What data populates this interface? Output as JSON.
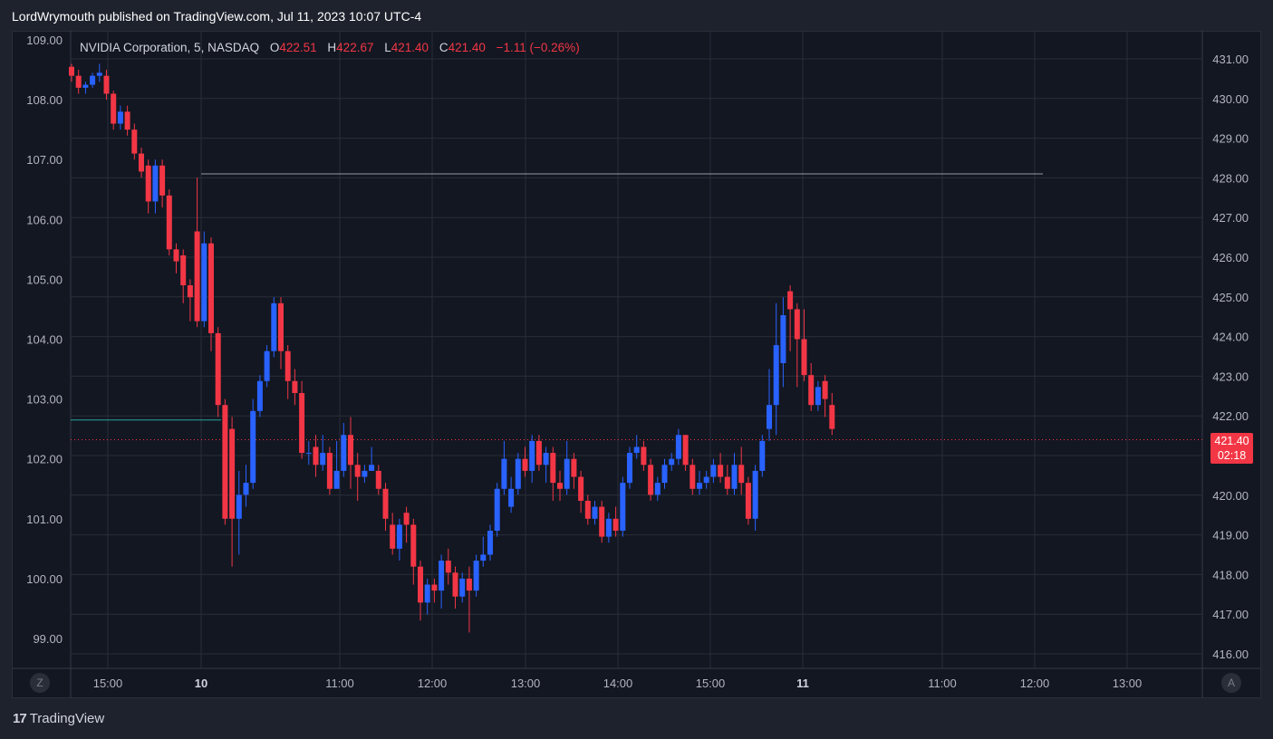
{
  "header": {
    "publisher_line": "LordWrymouth published on TradingView.com, Jul 11, 2023 10:07 UTC-4"
  },
  "legend": {
    "symbol": "NVIDIA Corporation, 5, NASDAQ",
    "o_label": "O",
    "o_value": "422.51",
    "h_label": "H",
    "h_value": "422.67",
    "l_label": "L",
    "l_value": "421.40",
    "c_label": "C",
    "c_value": "421.40",
    "change": "−1.11 (−0.26%)"
  },
  "price_badge": {
    "price": "421.40",
    "countdown": "02:18"
  },
  "buttons": {
    "left": "Z",
    "right": "A"
  },
  "footer": {
    "brand": "TradingView",
    "mark": "17"
  },
  "colors": {
    "up": "#2962ff",
    "down": "#f23645",
    "background": "#131722",
    "grid": "#2a2e39"
  },
  "chart_data": {
    "type": "candlestick",
    "symbol": "NVDA",
    "interval": "5",
    "left_axis": {
      "ticks": [
        "109.00",
        "108.00",
        "107.00",
        "106.00",
        "105.00",
        "104.00",
        "103.00",
        "102.00",
        "101.00",
        "100.00",
        "99.00"
      ],
      "range": [
        98.7,
        109.3
      ]
    },
    "right_axis": {
      "ticks": [
        "431.00",
        "430.00",
        "429.00",
        "428.00",
        "427.00",
        "426.00",
        "425.00",
        "424.00",
        "423.00",
        "422.00",
        "421.00",
        "420.00",
        "419.00",
        "418.00",
        "417.00",
        "416.00"
      ],
      "range": [
        415.7,
        431.6
      ]
    },
    "x_ticks": [
      "15:00",
      "10",
      "11:00",
      "12:00",
      "13:00",
      "14:00",
      "15:00",
      "11",
      "11:00",
      "12:00",
      "13:00"
    ],
    "horizontal_lines": [
      {
        "price": 428.1,
        "axis": "right",
        "color": "#9598a1"
      },
      {
        "price": 102.65,
        "axis": "left",
        "color": "#26a69a"
      },
      {
        "price": 421.4,
        "axis": "right",
        "color": "#f23645",
        "dashed": true
      }
    ],
    "candles": [
      [
        108.55,
        108.4,
        108.6,
        108.3
      ],
      [
        108.4,
        108.2,
        108.5,
        108.1
      ],
      [
        108.2,
        108.25,
        108.3,
        108.1
      ],
      [
        108.25,
        108.4,
        108.45,
        108.2
      ],
      [
        108.4,
        108.45,
        108.6,
        108.3
      ],
      [
        108.4,
        108.1,
        108.5,
        108.0
      ],
      [
        108.1,
        107.6,
        108.15,
        107.5
      ],
      [
        107.6,
        107.8,
        107.9,
        107.5
      ],
      [
        107.8,
        107.5,
        107.9,
        107.4
      ],
      [
        107.5,
        107.1,
        107.6,
        107.0
      ],
      [
        107.1,
        106.8,
        107.2,
        106.7
      ],
      [
        106.9,
        106.3,
        107.0,
        106.1
      ],
      [
        106.3,
        106.9,
        107.0,
        106.1
      ],
      [
        106.9,
        106.4,
        107.0,
        106.2
      ],
      [
        106.4,
        105.5,
        106.5,
        105.4
      ],
      [
        105.5,
        105.3,
        105.6,
        105.1
      ],
      [
        105.4,
        104.9,
        105.5,
        104.6
      ],
      [
        104.9,
        104.7,
        105.0,
        104.3
      ],
      [
        105.8,
        104.3,
        106.7,
        104.2
      ],
      [
        104.3,
        105.6,
        105.8,
        104.2
      ],
      [
        105.6,
        104.1,
        105.7,
        103.8
      ],
      [
        104.1,
        102.9,
        104.2,
        102.7
      ],
      [
        102.9,
        101.0,
        103.0,
        100.9
      ],
      [
        102.5,
        101.0,
        102.7,
        100.2
      ],
      [
        101.0,
        101.4,
        101.8,
        100.4
      ],
      [
        101.4,
        101.6,
        101.9,
        101.2
      ],
      [
        101.6,
        102.8,
        103.0,
        101.5
      ],
      [
        102.8,
        103.3,
        103.4,
        102.7
      ],
      [
        103.3,
        103.8,
        103.9,
        103.2
      ],
      [
        103.8,
        104.6,
        104.7,
        103.7
      ],
      [
        104.6,
        103.8,
        104.7,
        103.5
      ],
      [
        103.8,
        103.3,
        103.9,
        103.0
      ],
      [
        103.3,
        103.1,
        103.5,
        102.9
      ],
      [
        103.1,
        102.1,
        103.3,
        102.0
      ],
      [
        102.1,
        102.1,
        102.3,
        101.9
      ],
      [
        102.2,
        101.9,
        102.4,
        101.7
      ],
      [
        101.9,
        102.1,
        102.4,
        101.8
      ],
      [
        102.1,
        101.5,
        102.2,
        101.4
      ],
      [
        101.5,
        101.8,
        102.3,
        101.6
      ],
      [
        101.8,
        102.4,
        102.6,
        101.7
      ],
      [
        102.4,
        101.9,
        102.7,
        101.5
      ],
      [
        101.9,
        101.7,
        102.1,
        101.3
      ],
      [
        101.7,
        101.8,
        101.9,
        101.6
      ],
      [
        101.8,
        101.9,
        102.2,
        101.8
      ],
      [
        101.8,
        101.5,
        101.9,
        101.4
      ],
      [
        101.5,
        101.0,
        101.6,
        100.8
      ],
      [
        100.9,
        100.5,
        101.1,
        100.4
      ],
      [
        100.5,
        100.9,
        101.0,
        100.3
      ],
      [
        101.1,
        100.9,
        101.2,
        100.6
      ],
      [
        100.9,
        100.2,
        101.0,
        99.9
      ],
      [
        100.2,
        99.6,
        100.3,
        99.3
      ],
      [
        99.6,
        99.9,
        100.0,
        99.4
      ],
      [
        99.9,
        99.8,
        100.0,
        99.6
      ],
      [
        99.8,
        100.3,
        100.4,
        99.5
      ],
      [
        100.3,
        100.1,
        100.5,
        99.9
      ],
      [
        100.1,
        99.7,
        100.2,
        99.5
      ],
      [
        99.7,
        100.0,
        100.1,
        99.6
      ],
      [
        100.0,
        99.8,
        100.2,
        99.1
      ],
      [
        99.8,
        100.3,
        100.4,
        99.7
      ],
      [
        100.3,
        100.4,
        100.7,
        100.2
      ],
      [
        100.4,
        100.8,
        100.9,
        100.3
      ],
      [
        100.8,
        101.5,
        101.6,
        100.7
      ],
      [
        101.5,
        102.0,
        102.3,
        101.4
      ],
      [
        101.2,
        101.5,
        101.7,
        101.1
      ],
      [
        101.5,
        102.0,
        102.1,
        101.4
      ],
      [
        102.0,
        101.8,
        102.2,
        101.7
      ],
      [
        101.8,
        102.3,
        102.4,
        101.6
      ],
      [
        102.3,
        101.9,
        102.4,
        101.8
      ],
      [
        101.9,
        102.1,
        102.2,
        101.6
      ],
      [
        102.1,
        101.6,
        102.2,
        101.3
      ],
      [
        101.6,
        101.5,
        101.8,
        101.3
      ],
      [
        101.5,
        102.0,
        102.3,
        101.4
      ],
      [
        102.0,
        101.7,
        102.1,
        101.5
      ],
      [
        101.7,
        101.3,
        101.8,
        101.1
      ],
      [
        101.3,
        101.0,
        101.4,
        100.9
      ],
      [
        101.0,
        101.2,
        101.3,
        100.9
      ],
      [
        101.2,
        100.7,
        101.3,
        100.6
      ],
      [
        100.7,
        101.0,
        101.1,
        100.6
      ],
      [
        101.0,
        100.8,
        101.2,
        100.7
      ],
      [
        100.8,
        101.6,
        101.7,
        100.7
      ],
      [
        101.6,
        102.1,
        102.2,
        101.5
      ],
      [
        102.1,
        102.2,
        102.4,
        102.0
      ],
      [
        102.2,
        101.9,
        102.3,
        101.8
      ],
      [
        101.9,
        101.4,
        102.0,
        101.3
      ],
      [
        101.4,
        101.6,
        101.7,
        101.3
      ],
      [
        101.6,
        101.9,
        102.0,
        101.5
      ],
      [
        101.9,
        102.0,
        102.1,
        101.8
      ],
      [
        102.0,
        102.4,
        102.5,
        101.9
      ],
      [
        102.4,
        101.9,
        102.4,
        101.8
      ],
      [
        101.9,
        101.5,
        102.0,
        101.4
      ],
      [
        101.5,
        101.6,
        101.8,
        101.4
      ],
      [
        101.6,
        101.7,
        101.8,
        101.5
      ],
      [
        101.7,
        101.9,
        102.0,
        101.6
      ],
      [
        101.9,
        101.7,
        102.1,
        101.6
      ],
      [
        101.7,
        101.5,
        101.9,
        101.4
      ],
      [
        101.5,
        101.9,
        102.1,
        101.4
      ],
      [
        101.9,
        101.6,
        102.2,
        101.4
      ],
      [
        101.6,
        101.0,
        101.7,
        100.9
      ],
      [
        101.0,
        101.8,
        101.9,
        100.8
      ],
      [
        101.8,
        102.3,
        102.4,
        101.7
      ],
      [
        102.5,
        102.9,
        103.5,
        102.3
      ],
      [
        102.9,
        103.9,
        104.6,
        102.4
      ],
      [
        103.6,
        104.4,
        104.7,
        103.2
      ],
      [
        104.8,
        104.5,
        104.9,
        103.8
      ],
      [
        104.5,
        104.0,
        104.6,
        103.2
      ],
      [
        104.0,
        103.4,
        104.5,
        103.3
      ],
      [
        103.4,
        102.9,
        103.6,
        102.8
      ],
      [
        102.9,
        103.2,
        103.3,
        102.8
      ],
      [
        103.3,
        103.0,
        103.4,
        102.7
      ],
      [
        102.9,
        102.5,
        103.1,
        102.4
      ]
    ]
  }
}
